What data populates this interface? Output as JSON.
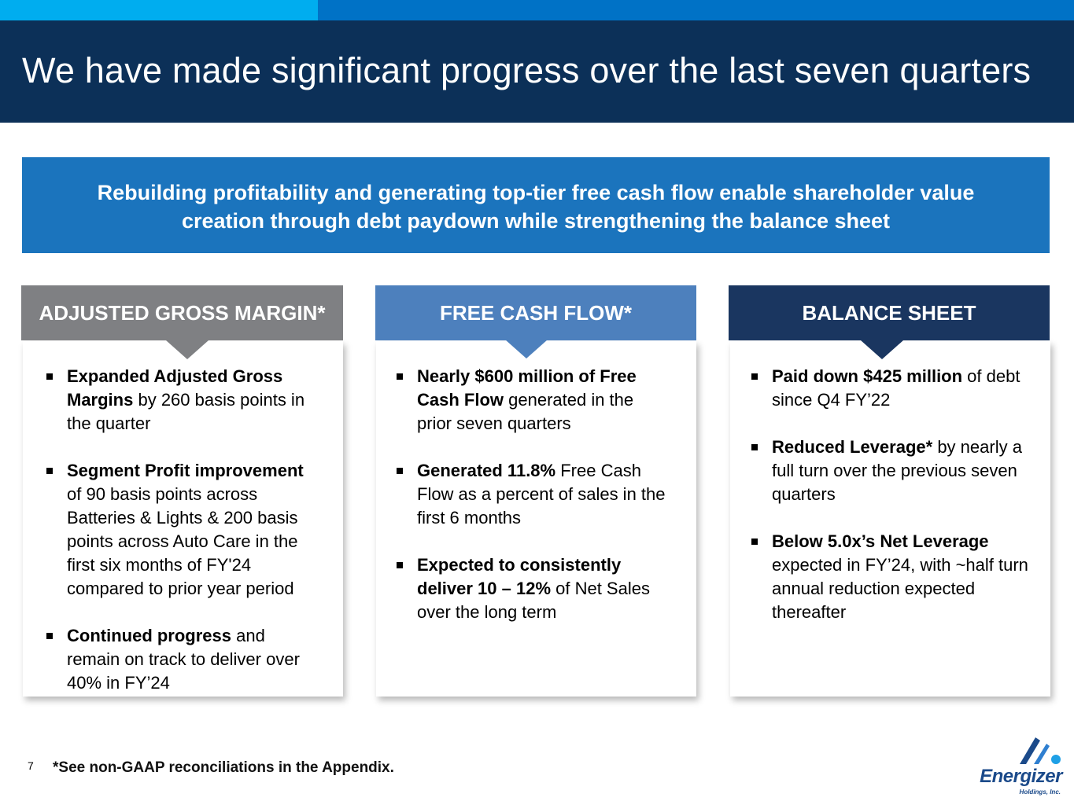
{
  "header": {
    "title": "We have made significant progress over the last seven quarters"
  },
  "banner": {
    "line1": "Rebuilding profitability and generating top-tier free cash flow enable shareholder value",
    "line2": "creation through debt paydown while strengthening the balance sheet"
  },
  "columns": [
    {
      "heading": "ADJUSTED GROSS MARGIN*",
      "color": "#7f8083",
      "bullets": [
        {
          "bold": "Expanded Adjusted Gross Margins",
          "rest": " by 260 basis points in the quarter"
        },
        {
          "bold": "Segment Profit improvement",
          "rest": " of 90 basis points across Batteries & Lights & 200 basis points across Auto Care in the first six months of FY'24 compared to prior year period"
        },
        {
          "bold": "Continued progress",
          "rest": " and remain on track to deliver over 40% in FY’24"
        }
      ]
    },
    {
      "heading": "FREE CASH FLOW*",
      "color": "#4d80bd",
      "bullets": [
        {
          "bold": "Nearly $600 million of Free Cash Flow",
          "rest": " generated in the prior seven quarters"
        },
        {
          "bold": "Generated 11.8%",
          "rest": " Free Cash Flow as a percent of sales in the first 6 months"
        },
        {
          "bold": "Expected to consistently deliver 10 – 12%",
          "rest": " of Net Sales over the long term"
        }
      ]
    },
    {
      "heading": "BALANCE SHEET",
      "color": "#1a3660",
      "bullets": [
        {
          "bold": "Paid down $425 million",
          "rest": " of debt since Q4 FY’22"
        },
        {
          "bold": "Reduced Leverage*",
          "rest": " by nearly a full turn over the previous seven quarters"
        },
        {
          "bold": "Below 5.0x’s Net Leverage",
          "rest": " expected in FY’24, with ~half turn annual reduction expected thereafter"
        }
      ]
    }
  ],
  "footer": {
    "page_number": "7",
    "footnote": "*See non-GAAP reconciliations in the Appendix."
  },
  "logo": {
    "name": "Energizer",
    "sub": "Holdings, Inc."
  },
  "colors": {
    "title_band": "#0c3058",
    "banner": "#1b74bd",
    "accent_light": "#00adef",
    "accent": "#0072c6"
  }
}
